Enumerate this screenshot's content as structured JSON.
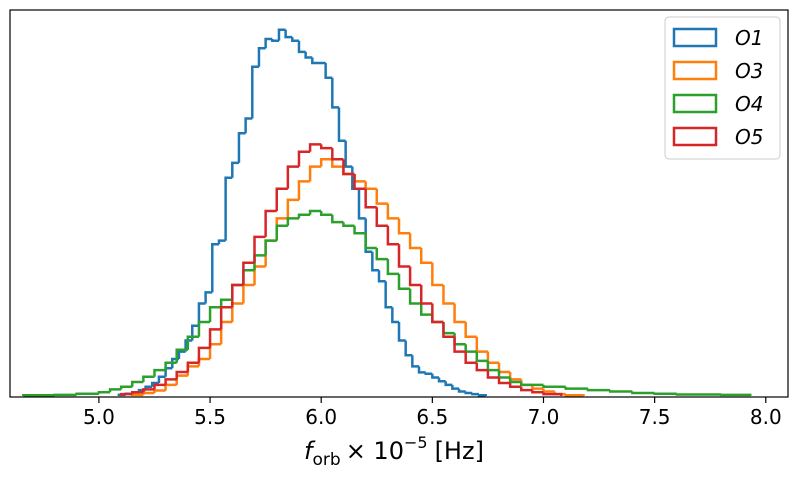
{
  "chart_data": {
    "type": "histogram",
    "title": "",
    "xlabel": {
      "symbol": "f",
      "subscript": "orb",
      "rest": "× 10",
      "exponent": "−5",
      "unit": "[Hz]"
    },
    "ylabel": "",
    "xlim": [
      4.6,
      8.1
    ],
    "ylim": [
      0,
      1.0
    ],
    "xticks": [
      5.0,
      5.5,
      6.0,
      6.5,
      7.0,
      7.5,
      8.0
    ],
    "xtick_labels": [
      "5.0",
      "5.5",
      "6.0",
      "6.5",
      "7.0",
      "7.5",
      "8.0"
    ],
    "yticks_visible": false,
    "legend_position": "top-right",
    "series": [
      {
        "name": "O1",
        "color": "#1f77b4",
        "bins": [
          [
            5.09,
            5.12,
            0.003
          ],
          [
            5.12,
            5.15,
            0.006
          ],
          [
            5.15,
            5.18,
            0.009
          ],
          [
            5.18,
            5.21,
            0.016
          ],
          [
            5.21,
            5.24,
            0.025
          ],
          [
            5.24,
            5.27,
            0.035
          ],
          [
            5.27,
            5.3,
            0.052
          ],
          [
            5.3,
            5.33,
            0.075
          ],
          [
            5.33,
            5.36,
            0.1
          ],
          [
            5.36,
            5.39,
            0.12
          ],
          [
            5.39,
            5.42,
            0.15
          ],
          [
            5.42,
            5.45,
            0.19
          ],
          [
            5.45,
            5.48,
            0.25
          ],
          [
            5.48,
            5.51,
            0.28
          ],
          [
            5.51,
            5.54,
            0.41
          ],
          [
            5.54,
            5.57,
            0.42
          ],
          [
            5.57,
            5.6,
            0.59
          ],
          [
            5.6,
            5.63,
            0.63
          ],
          [
            5.63,
            5.66,
            0.71
          ],
          [
            5.66,
            5.69,
            0.75
          ],
          [
            5.69,
            5.72,
            0.89
          ],
          [
            5.72,
            5.75,
            0.94
          ],
          [
            5.75,
            5.78,
            0.965
          ],
          [
            5.78,
            5.81,
            0.96
          ],
          [
            5.81,
            5.84,
            0.99
          ],
          [
            5.84,
            5.87,
            0.97
          ],
          [
            5.87,
            5.9,
            0.96
          ],
          [
            5.9,
            5.93,
            0.93
          ],
          [
            5.93,
            5.96,
            0.915
          ],
          [
            5.96,
            5.99,
            0.9
          ],
          [
            5.99,
            6.02,
            0.9
          ],
          [
            6.02,
            6.05,
            0.86
          ],
          [
            6.05,
            6.08,
            0.78
          ],
          [
            6.08,
            6.11,
            0.69
          ],
          [
            6.11,
            6.14,
            0.62
          ],
          [
            6.14,
            6.17,
            0.56
          ],
          [
            6.17,
            6.2,
            0.48
          ],
          [
            6.2,
            6.23,
            0.39
          ],
          [
            6.23,
            6.26,
            0.34
          ],
          [
            6.26,
            6.29,
            0.31
          ],
          [
            6.29,
            6.32,
            0.24
          ],
          [
            6.32,
            6.35,
            0.2
          ],
          [
            6.35,
            6.38,
            0.15
          ],
          [
            6.38,
            6.41,
            0.11
          ],
          [
            6.41,
            6.44,
            0.08
          ],
          [
            6.44,
            6.47,
            0.064
          ],
          [
            6.47,
            6.5,
            0.06
          ],
          [
            6.5,
            6.53,
            0.05
          ],
          [
            6.53,
            6.56,
            0.04
          ],
          [
            6.56,
            6.59,
            0.03
          ],
          [
            6.59,
            6.62,
            0.02
          ],
          [
            6.62,
            6.65,
            0.012
          ],
          [
            6.65,
            6.68,
            0.008
          ],
          [
            6.68,
            6.71,
            0.005
          ],
          [
            6.71,
            6.74,
            0.002
          ]
        ]
      },
      {
        "name": "O3",
        "color": "#ff7f0e",
        "bins": [
          [
            5.15,
            5.2,
            0.003
          ],
          [
            5.2,
            5.25,
            0.008
          ],
          [
            5.25,
            5.3,
            0.015
          ],
          [
            5.3,
            5.35,
            0.03
          ],
          [
            5.35,
            5.4,
            0.055
          ],
          [
            5.4,
            5.45,
            0.08
          ],
          [
            5.45,
            5.5,
            0.1
          ],
          [
            5.5,
            5.55,
            0.14
          ],
          [
            5.55,
            5.6,
            0.2
          ],
          [
            5.6,
            5.65,
            0.25
          ],
          [
            5.65,
            5.7,
            0.3
          ],
          [
            5.7,
            5.75,
            0.35
          ],
          [
            5.75,
            5.8,
            0.42
          ],
          [
            5.8,
            5.85,
            0.48
          ],
          [
            5.85,
            5.9,
            0.53
          ],
          [
            5.9,
            5.95,
            0.58
          ],
          [
            5.95,
            6.0,
            0.62
          ],
          [
            6.0,
            6.05,
            0.64
          ],
          [
            6.05,
            6.1,
            0.62
          ],
          [
            6.1,
            6.15,
            0.6
          ],
          [
            6.15,
            6.2,
            0.58
          ],
          [
            6.2,
            6.25,
            0.56
          ],
          [
            6.25,
            6.3,
            0.52
          ],
          [
            6.3,
            6.35,
            0.48
          ],
          [
            6.35,
            6.4,
            0.44
          ],
          [
            6.4,
            6.45,
            0.4
          ],
          [
            6.45,
            6.5,
            0.36
          ],
          [
            6.5,
            6.55,
            0.3
          ],
          [
            6.55,
            6.6,
            0.25
          ],
          [
            6.6,
            6.65,
            0.2
          ],
          [
            6.65,
            6.7,
            0.16
          ],
          [
            6.7,
            6.75,
            0.12
          ],
          [
            6.75,
            6.8,
            0.09
          ],
          [
            6.8,
            6.85,
            0.065
          ],
          [
            6.85,
            6.9,
            0.045
          ],
          [
            6.9,
            6.95,
            0.03
          ],
          [
            6.95,
            7.0,
            0.02
          ],
          [
            7.0,
            7.05,
            0.012
          ],
          [
            7.05,
            7.1,
            0.005
          ],
          [
            7.1,
            7.18,
            0.002
          ]
        ]
      },
      {
        "name": "O4",
        "color": "#2ca02c",
        "bins": [
          [
            4.66,
            4.8,
            0.002
          ],
          [
            4.8,
            4.9,
            0.003
          ],
          [
            4.9,
            5.0,
            0.006
          ],
          [
            5.0,
            5.05,
            0.01
          ],
          [
            5.05,
            5.1,
            0.018
          ],
          [
            5.1,
            5.15,
            0.025
          ],
          [
            5.15,
            5.2,
            0.038
          ],
          [
            5.2,
            5.25,
            0.052
          ],
          [
            5.25,
            5.3,
            0.07
          ],
          [
            5.3,
            5.35,
            0.09
          ],
          [
            5.35,
            5.4,
            0.125
          ],
          [
            5.4,
            5.45,
            0.16
          ],
          [
            5.45,
            5.5,
            0.2
          ],
          [
            5.5,
            5.55,
            0.24
          ],
          [
            5.55,
            5.6,
            0.26
          ],
          [
            5.6,
            5.65,
            0.3
          ],
          [
            5.65,
            5.7,
            0.34
          ],
          [
            5.7,
            5.75,
            0.38
          ],
          [
            5.75,
            5.8,
            0.42
          ],
          [
            5.8,
            5.85,
            0.46
          ],
          [
            5.85,
            5.9,
            0.48
          ],
          [
            5.9,
            5.95,
            0.49
          ],
          [
            5.95,
            6.0,
            0.5
          ],
          [
            6.0,
            6.05,
            0.49
          ],
          [
            6.05,
            6.1,
            0.47
          ],
          [
            6.1,
            6.15,
            0.46
          ],
          [
            6.15,
            6.2,
            0.44
          ],
          [
            6.2,
            6.25,
            0.4
          ],
          [
            6.25,
            6.3,
            0.37
          ],
          [
            6.3,
            6.35,
            0.33
          ],
          [
            6.35,
            6.4,
            0.29
          ],
          [
            6.4,
            6.45,
            0.25
          ],
          [
            6.45,
            6.5,
            0.22
          ],
          [
            6.5,
            6.55,
            0.2
          ],
          [
            6.55,
            6.6,
            0.17
          ],
          [
            6.6,
            6.65,
            0.14
          ],
          [
            6.65,
            6.7,
            0.12
          ],
          [
            6.7,
            6.75,
            0.095
          ],
          [
            6.75,
            6.8,
            0.07
          ],
          [
            6.8,
            6.85,
            0.05
          ],
          [
            6.85,
            6.9,
            0.038
          ],
          [
            6.9,
            7.0,
            0.03
          ],
          [
            7.0,
            7.1,
            0.025
          ],
          [
            7.1,
            7.2,
            0.02
          ],
          [
            7.2,
            7.3,
            0.016
          ],
          [
            7.3,
            7.4,
            0.012
          ],
          [
            7.4,
            7.5,
            0.008
          ],
          [
            7.5,
            7.6,
            0.006
          ],
          [
            7.6,
            7.8,
            0.004
          ],
          [
            7.8,
            7.93,
            0.003
          ]
        ]
      },
      {
        "name": "O5",
        "color": "#d62728",
        "bins": [
          [
            5.1,
            5.15,
            0.005
          ],
          [
            5.15,
            5.2,
            0.01
          ],
          [
            5.2,
            5.25,
            0.018
          ],
          [
            5.25,
            5.3,
            0.03
          ],
          [
            5.3,
            5.35,
            0.045
          ],
          [
            5.35,
            5.4,
            0.065
          ],
          [
            5.4,
            5.45,
            0.09
          ],
          [
            5.45,
            5.5,
            0.13
          ],
          [
            5.5,
            5.55,
            0.18
          ],
          [
            5.55,
            5.6,
            0.24
          ],
          [
            5.6,
            5.65,
            0.3
          ],
          [
            5.65,
            5.7,
            0.36
          ],
          [
            5.7,
            5.75,
            0.43
          ],
          [
            5.75,
            5.8,
            0.5
          ],
          [
            5.8,
            5.85,
            0.56
          ],
          [
            5.85,
            5.9,
            0.62
          ],
          [
            5.9,
            5.95,
            0.66
          ],
          [
            5.95,
            6.0,
            0.68
          ],
          [
            6.0,
            6.05,
            0.67
          ],
          [
            6.05,
            6.1,
            0.64
          ],
          [
            6.1,
            6.15,
            0.6
          ],
          [
            6.15,
            6.2,
            0.56
          ],
          [
            6.2,
            6.25,
            0.51
          ],
          [
            6.25,
            6.3,
            0.46
          ],
          [
            6.3,
            6.35,
            0.41
          ],
          [
            6.35,
            6.4,
            0.35
          ],
          [
            6.4,
            6.45,
            0.3
          ],
          [
            6.45,
            6.5,
            0.25
          ],
          [
            6.5,
            6.55,
            0.2
          ],
          [
            6.55,
            6.6,
            0.16
          ],
          [
            6.6,
            6.65,
            0.12
          ],
          [
            6.65,
            6.7,
            0.09
          ],
          [
            6.7,
            6.75,
            0.07
          ],
          [
            6.75,
            6.8,
            0.05
          ],
          [
            6.8,
            6.85,
            0.035
          ],
          [
            6.85,
            6.9,
            0.025
          ],
          [
            6.9,
            6.95,
            0.016
          ],
          [
            6.95,
            7.0,
            0.01
          ],
          [
            7.0,
            7.08,
            0.005
          ]
        ]
      }
    ]
  }
}
